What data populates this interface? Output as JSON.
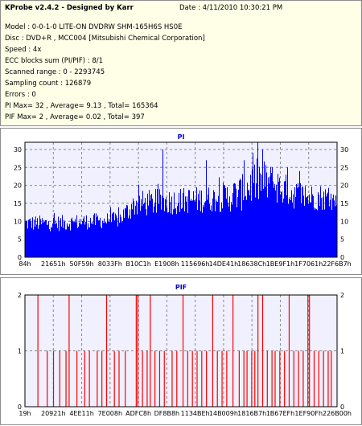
{
  "info": {
    "title": "KProbe v2.4.2 - Designed by Karr",
    "date": "Date : 4/11/2010 10:30:21 PM",
    "lines": [
      "Model : 0-0-1-0 LITE-ON DVDRW SHM-165H6S HS0E",
      "Disc : DVD+R , MCC004 [Mitsubishi Chemical Corporation]",
      "Speed : 4x",
      "ECC blocks sum (PI/PIF) : 8/1",
      "Scanned range : 0 - 2293745",
      "Sampling count : 126879",
      "Errors : 0",
      "PI Max= 32 , Average= 9.13 , Total= 165364",
      "PIF Max= 2 , Average= 0.02 , Total= 397"
    ]
  },
  "colors": {
    "pi_fill": "#0000ff",
    "pif_line": "#ff0000",
    "plot_bg": "#f0f0ff",
    "title": "#0000c0"
  },
  "chart_data": [
    {
      "type": "bar",
      "title": "PI",
      "ylim": [
        0,
        32
      ],
      "y_ticks": [
        0,
        5,
        10,
        15,
        20,
        25,
        30
      ],
      "x_tick_labels": [
        "84h",
        "21651h",
        "50F59h",
        "8033Fh",
        "B10C1h",
        "E1908h",
        "115696h",
        "14DE41h",
        "18638Ch",
        "1BE9F1h",
        "1F7061h",
        "22F6B7h"
      ],
      "grid": true,
      "legend": "none",
      "profile": {
        "description_values": "approximate level envelope across scanned range (fraction of range -> typical PI)",
        "x": [
          0.0,
          0.1,
          0.2,
          0.3,
          0.35,
          0.42,
          0.5,
          0.6,
          0.65,
          0.7,
          0.72,
          0.75,
          0.8,
          0.85,
          0.9,
          0.95,
          1.0
        ],
        "base": [
          9,
          9,
          9.5,
          10,
          14,
          14.5,
          15,
          15.5,
          16,
          17,
          19,
          20,
          19,
          17,
          16,
          16,
          15
        ],
        "spread": [
          3,
          3,
          3,
          3,
          5,
          5,
          5,
          5,
          6,
          7,
          8,
          9,
          7,
          6,
          5,
          5,
          4
        ]
      },
      "peaks": [
        {
          "x": 0.44,
          "value": 30
        },
        {
          "x": 0.58,
          "value": 27
        },
        {
          "x": 0.7,
          "value": 27
        },
        {
          "x": 0.73,
          "value": 29
        },
        {
          "x": 0.745,
          "value": 32
        },
        {
          "x": 0.76,
          "value": 30
        },
        {
          "x": 0.79,
          "value": 25
        },
        {
          "x": 0.84,
          "value": 25
        },
        {
          "x": 0.88,
          "value": 24
        }
      ]
    },
    {
      "type": "bar",
      "title": "PIF",
      "ylim": [
        0,
        2
      ],
      "y_ticks": [
        0,
        1,
        2
      ],
      "x_tick_labels": [
        "19h",
        "20921h",
        "4EE11h",
        "7E008h",
        "ADFC8h",
        "DF8B8h",
        "1134BEh",
        "14B009h",
        "1816B7h",
        "1B67EFh",
        "1EF90Fh",
        "226B00h"
      ],
      "grid": true,
      "legend": "none",
      "twos": [
        0.04,
        0.14,
        0.26,
        0.355,
        0.36,
        0.4,
        0.505,
        0.6,
        0.665,
        0.745,
        0.76,
        0.845,
        0.905,
        0.91
      ],
      "ones": [
        0.07,
        0.09,
        0.11,
        0.13,
        0.165,
        0.19,
        0.205,
        0.23,
        0.245,
        0.285,
        0.3,
        0.32,
        0.375,
        0.39,
        0.415,
        0.43,
        0.445,
        0.47,
        0.485,
        0.52,
        0.535,
        0.55,
        0.565,
        0.58,
        0.615,
        0.63,
        0.645,
        0.685,
        0.7,
        0.71,
        0.725,
        0.735,
        0.775,
        0.79,
        0.8,
        0.815,
        0.83,
        0.86,
        0.875,
        0.89,
        0.925,
        0.94,
        0.955,
        0.97,
        0.98
      ]
    }
  ]
}
